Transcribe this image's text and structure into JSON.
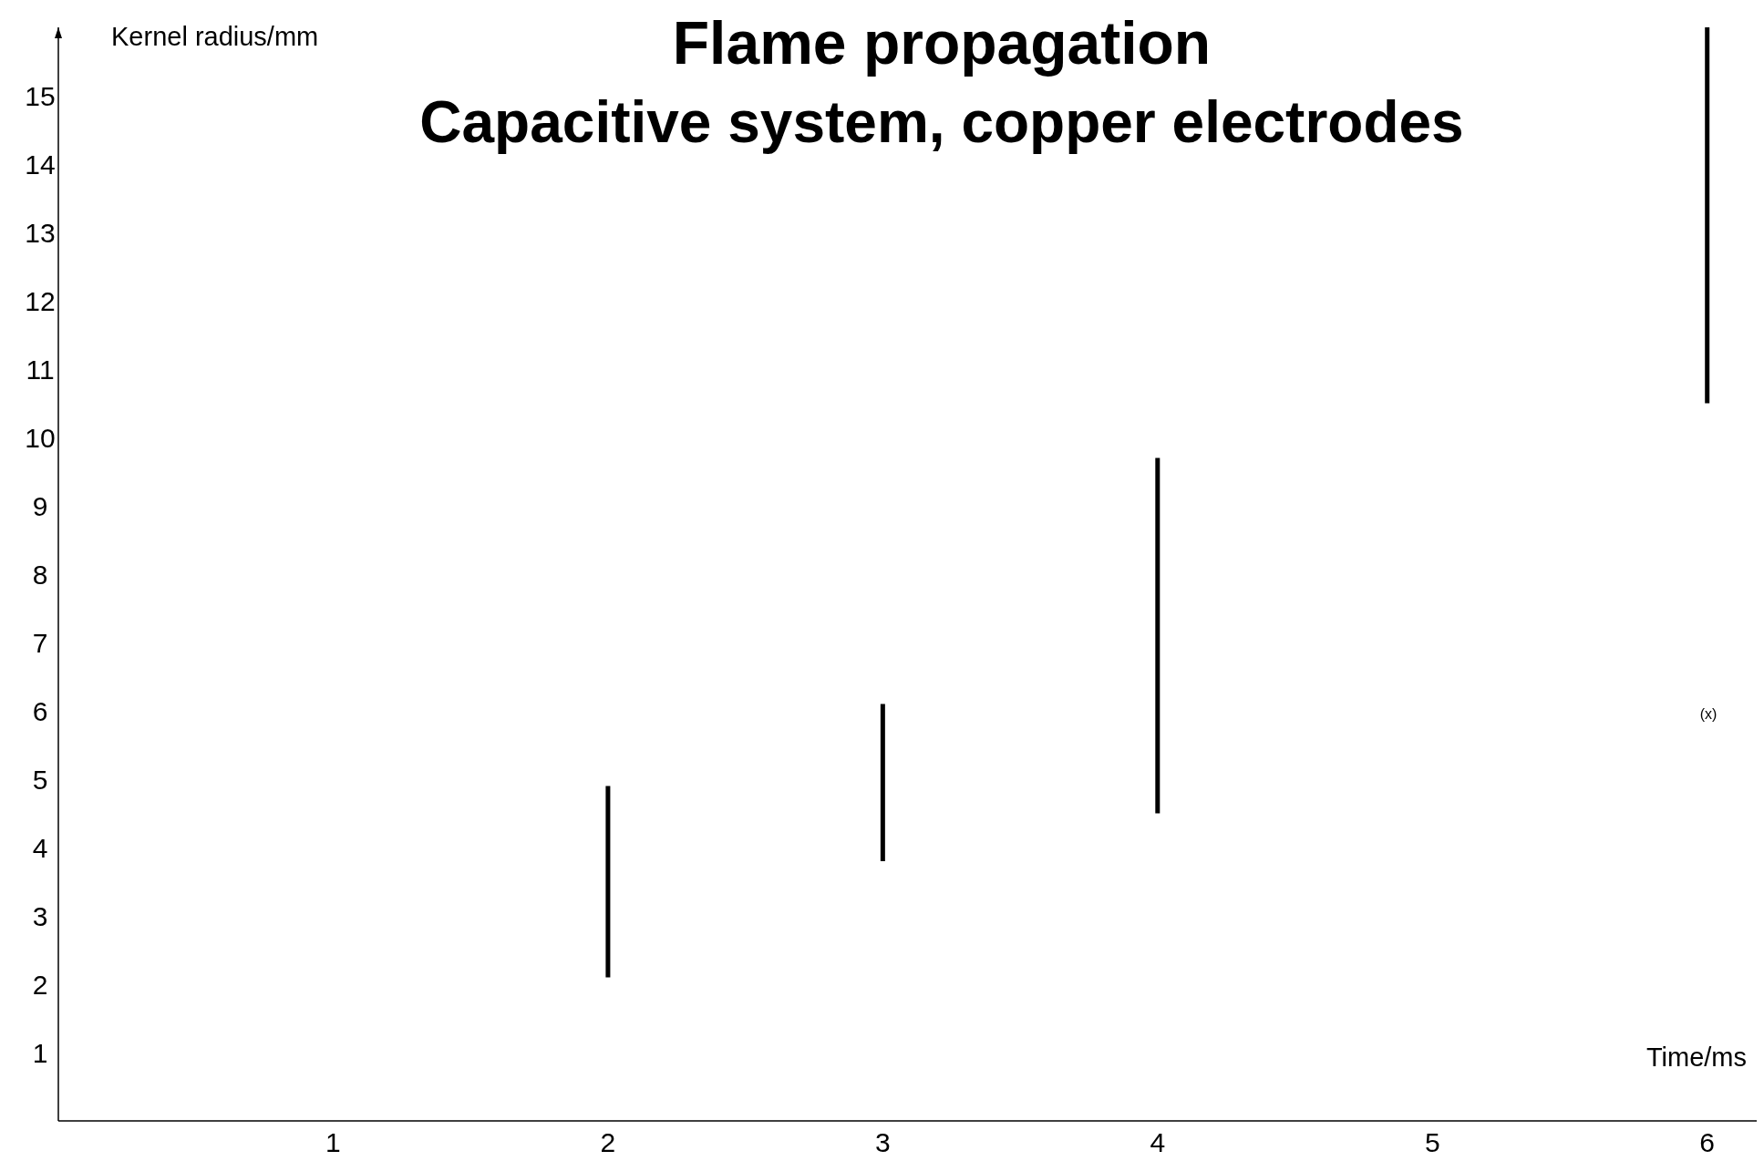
{
  "chart_data": {
    "type": "bar",
    "title": "Flame propagation",
    "subtitle": "Capacitive system, copper electrodes",
    "xlabel": "Time/ms",
    "ylabel": "Kernel radius/mm",
    "x": [
      2,
      3,
      4,
      6
    ],
    "base": [
      2.1,
      3.8,
      4.5,
      10.5
    ],
    "values": [
      2.8,
      2.3,
      5.2,
      5.5
    ],
    "color": "#000000",
    "xlim": [
      0,
      6.2
    ],
    "xticks": [
      1,
      2,
      3,
      4,
      5,
      6
    ],
    "ylim": [
      0,
      16
    ],
    "yticks": [
      1,
      2,
      3,
      4,
      5,
      6,
      7,
      8,
      9,
      10,
      11,
      12,
      13,
      14,
      15
    ],
    "annotations": [
      "(x)"
    ]
  }
}
